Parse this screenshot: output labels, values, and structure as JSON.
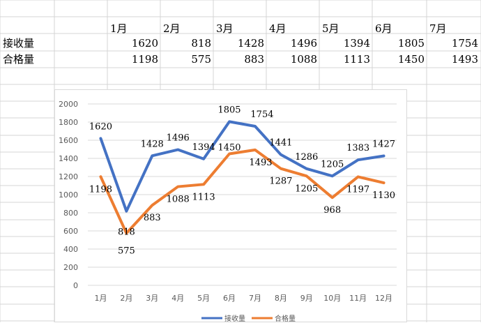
{
  "sheet": {
    "header_row": [
      "1月",
      "2月",
      "3月",
      "4月",
      "5月",
      "6月",
      "7月"
    ],
    "rows": [
      {
        "label": "接收量",
        "values": [
          1620,
          818,
          1428,
          1496,
          1394,
          1805,
          1754
        ]
      },
      {
        "label": "合格量",
        "values": [
          1198,
          575,
          883,
          1088,
          1113,
          1450,
          1493
        ]
      }
    ]
  },
  "chart_data": {
    "type": "line",
    "categories": [
      "1月",
      "2月",
      "3月",
      "4月",
      "5月",
      "6月",
      "7月",
      "8月",
      "9月",
      "10月",
      "11月",
      "12月"
    ],
    "series": [
      {
        "name": "接收量",
        "color": "#4472c4",
        "values": [
          1620,
          818,
          1428,
          1496,
          1394,
          1805,
          1754,
          1441,
          1286,
          1205,
          1383,
          1427
        ]
      },
      {
        "name": "合格量",
        "color": "#ed7d31",
        "values": [
          1198,
          575,
          883,
          1088,
          1113,
          1450,
          1493,
          1287,
          1205,
          968,
          1197,
          1130
        ]
      }
    ],
    "y_ticks": [
      0,
      200,
      400,
      600,
      800,
      1000,
      1200,
      1400,
      1600,
      1800,
      2000
    ],
    "ylim": [
      0,
      2000
    ],
    "grid": true,
    "legend": "bottom-center",
    "title": "",
    "xlabel": "",
    "ylabel": ""
  }
}
